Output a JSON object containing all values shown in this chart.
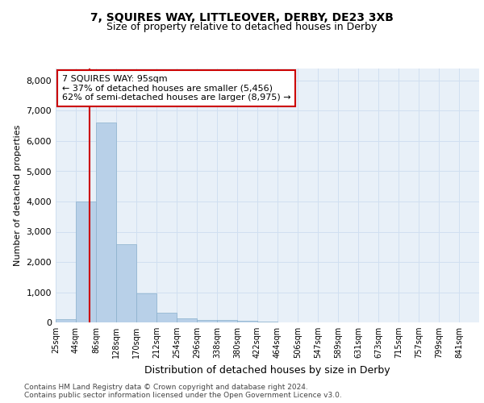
{
  "title": "7, SQUIRES WAY, LITTLEOVER, DERBY, DE23 3XB",
  "subtitle": "Size of property relative to detached houses in Derby",
  "xlabel": "Distribution of detached houses by size in Derby",
  "ylabel": "Number of detached properties",
  "bin_edges": [
    25,
    67,
    109,
    151,
    193,
    235,
    277,
    319,
    361,
    403,
    445,
    487,
    529,
    571,
    613,
    655,
    697,
    739,
    781,
    823,
    865
  ],
  "bar_heights": [
    100,
    4000,
    6600,
    2600,
    950,
    320,
    130,
    90,
    70,
    55,
    40,
    0,
    0,
    0,
    0,
    0,
    0,
    0,
    0,
    0
  ],
  "bar_color": "#b8d0e8",
  "bar_edgecolor": "#8ab0cc",
  "bar_linewidth": 0.5,
  "vline_x": 95,
  "vline_color": "#cc0000",
  "annotation_text": "7 SQUIRES WAY: 95sqm\n← 37% of detached houses are smaller (5,456)\n62% of semi-detached houses are larger (8,975) →",
  "annotation_box_color": "#cc0000",
  "ylim": [
    0,
    8400
  ],
  "yticks": [
    0,
    1000,
    2000,
    3000,
    4000,
    5000,
    6000,
    7000,
    8000
  ],
  "tick_labels": [
    "25sqm",
    "44sqm",
    "86sqm",
    "128sqm",
    "170sqm",
    "212sqm",
    "254sqm",
    "296sqm",
    "338sqm",
    "380sqm",
    "422sqm",
    "464sqm",
    "506sqm",
    "547sqm",
    "589sqm",
    "631sqm",
    "673sqm",
    "715sqm",
    "757sqm",
    "799sqm",
    "841sqm"
  ],
  "grid_color": "#d0dff0",
  "background_color": "#e8f0f8",
  "footer_text": "Contains HM Land Registry data © Crown copyright and database right 2024.\nContains public sector information licensed under the Open Government Licence v3.0.",
  "title_fontsize": 10,
  "subtitle_fontsize": 9,
  "ylabel_fontsize": 8,
  "xlabel_fontsize": 9,
  "annotation_fontsize": 8,
  "footer_fontsize": 6.5,
  "ytick_fontsize": 8,
  "xtick_fontsize": 7
}
